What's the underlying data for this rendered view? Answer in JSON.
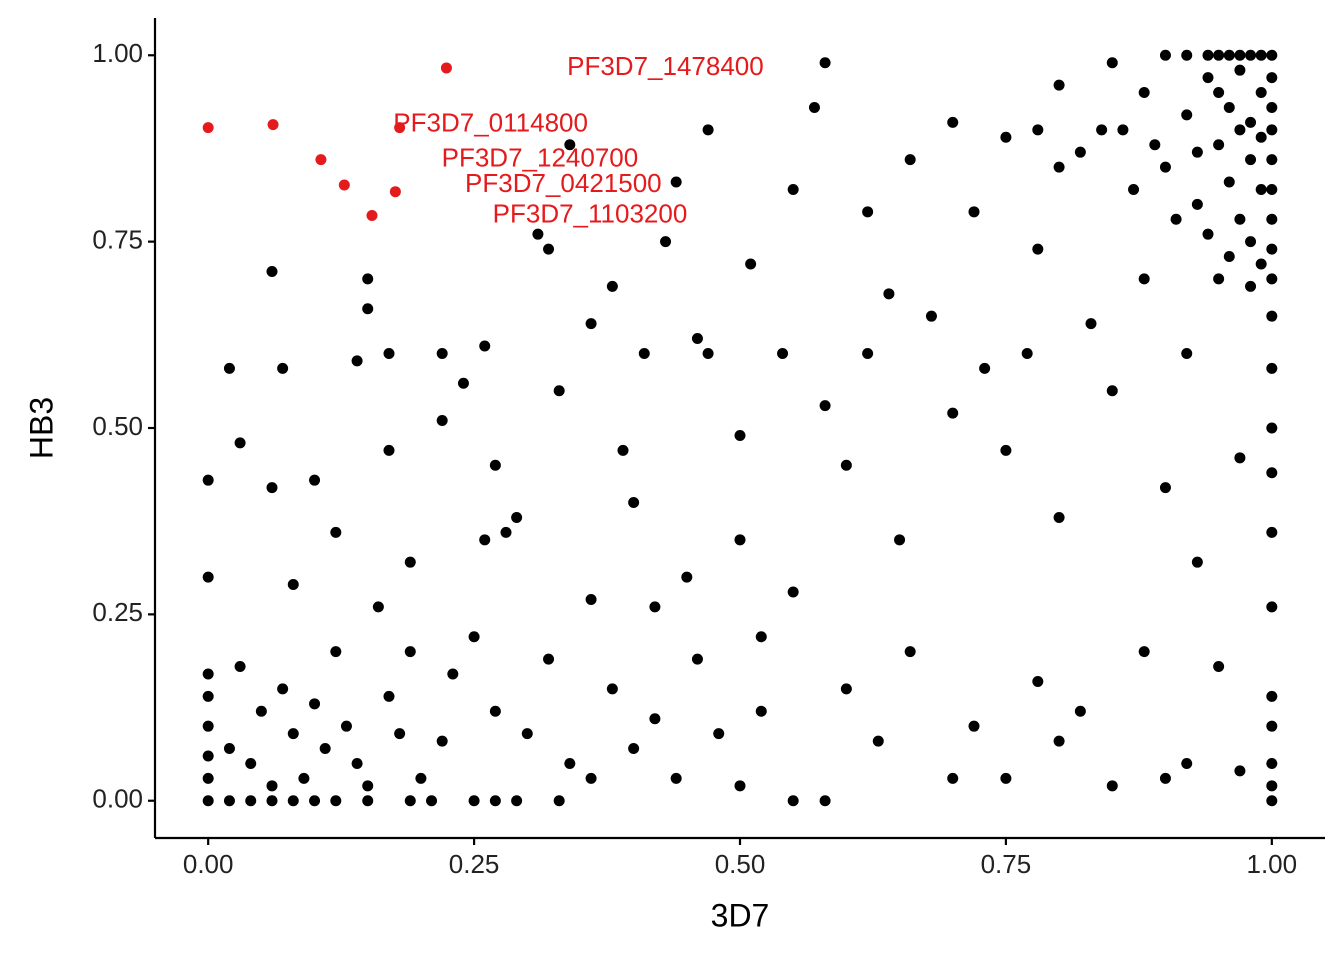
{
  "chart_data": {
    "type": "scatter",
    "x_label": "3D7",
    "y_label": "HB3",
    "xlim": [
      -0.05,
      1.05
    ],
    "ylim": [
      -0.05,
      1.05
    ],
    "xticks": [
      {
        "value": 0,
        "label": "0.00"
      },
      {
        "value": 0.25,
        "label": "0.25"
      },
      {
        "value": 0.5,
        "label": "0.50"
      },
      {
        "value": 0.75,
        "label": "0.75"
      },
      {
        "value": 1,
        "label": "1.00"
      }
    ],
    "yticks": [
      {
        "value": 0,
        "label": "0.00"
      },
      {
        "value": 0.25,
        "label": "0.25"
      },
      {
        "value": 0.5,
        "label": "0.50"
      },
      {
        "value": 0.75,
        "label": "0.75"
      },
      {
        "value": 1,
        "label": "1.00"
      }
    ],
    "grid": false,
    "series": [
      {
        "color": "#000000",
        "x": [
          0,
          0.02,
          0.04,
          0.06,
          0.08,
          0.1,
          0.12,
          0.15,
          0.19,
          0.21,
          0.25,
          0.27,
          0.29,
          0.33,
          0,
          0,
          0,
          0,
          0,
          0,
          0,
          0.02,
          0.03,
          0.04,
          0.05,
          0.06,
          0.07,
          0.08,
          0.09,
          0.1,
          0.11,
          0.12,
          0.13,
          0.14,
          0.15,
          0.16,
          0.17,
          0.18,
          0.19,
          0.2,
          0.22,
          0.23,
          0.25,
          0.27,
          0.3,
          0.32,
          0.34,
          0.36,
          0.38,
          0.4,
          0.42,
          0.44,
          0.46,
          0.48,
          0.5,
          0.52,
          0.55,
          0.58,
          0.6,
          0.63,
          0.66,
          0.7,
          0.72,
          0.75,
          0.78,
          0.8,
          0.82,
          0.85,
          0.88,
          0.9,
          0.92,
          0.95,
          0.97,
          1,
          1,
          1,
          1,
          1,
          1,
          1,
          1,
          1,
          1,
          1,
          0.02,
          0.03,
          0.06,
          0.06,
          0.07,
          0.1,
          0.14,
          0.15,
          0.15,
          0.17,
          0.17,
          0.22,
          0.22,
          0.26,
          0.24,
          0.27,
          0.29,
          0.31,
          0.32,
          0.34,
          0.36,
          0.38,
          0.39,
          0.41,
          0.43,
          0.44,
          0.47,
          0.47,
          0.5,
          0.51,
          0.55,
          0.57,
          0.58,
          0.62,
          0.64,
          0.66,
          0.7,
          0.72,
          0.75,
          0.78,
          0.8,
          0.82,
          0.85,
          0.4,
          0.45,
          0.5,
          0.55,
          0.6,
          0.65,
          0.7,
          0.75,
          0.8,
          0.85,
          0.9,
          0.93,
          0.97,
          0.28,
          0.26,
          0.19,
          0.12,
          0.08,
          0.36,
          0.42,
          0.52,
          0.58,
          0.62,
          0.68,
          0.73,
          0.77,
          0.83,
          0.88,
          0.92,
          0.95,
          0.98,
          0.33,
          0.46,
          0.54,
          0.86,
          0.88,
          0.9,
          0.9,
          0.92,
          0.93,
          0.94,
          0.95,
          0.95,
          0.96,
          0.96,
          0.97,
          0.97,
          0.98,
          0.98,
          0.99,
          0.99,
          1,
          1,
          1,
          1,
          1,
          1,
          1,
          1,
          0.99,
          0.98,
          0.97,
          0.96,
          0.94,
          0.92,
          0.99,
          0.97,
          0.95,
          0.93,
          0.91,
          0.89,
          0.87,
          0.84,
          0.8,
          0.78,
          0.98,
          0.96,
          0.94,
          1,
          0.99
        ],
        "y": [
          0,
          0,
          0,
          0,
          0,
          0,
          0,
          0,
          0,
          0,
          0,
          0,
          0,
          0,
          0.03,
          0.06,
          0.1,
          0.14,
          0.17,
          0.3,
          0.43,
          0.07,
          0.18,
          0.05,
          0.12,
          0.02,
          0.15,
          0.09,
          0.03,
          0.13,
          0.07,
          0.2,
          0.1,
          0.05,
          0.02,
          0.26,
          0.14,
          0.09,
          0.2,
          0.03,
          0.08,
          0.17,
          0.22,
          0.12,
          0.09,
          0.19,
          0.05,
          0.03,
          0.15,
          0.07,
          0.11,
          0.03,
          0.19,
          0.09,
          0.02,
          0.12,
          0,
          0,
          0.15,
          0.08,
          0.2,
          0.03,
          0.1,
          0.03,
          0.16,
          0.08,
          0.12,
          0.02,
          0.2,
          0.03,
          0.05,
          0.18,
          0.04,
          0,
          0.02,
          0.05,
          0.1,
          0.14,
          0.26,
          0.36,
          0.44,
          0.5,
          0.58,
          0.65,
          0.58,
          0.48,
          0.42,
          0.71,
          0.58,
          0.43,
          0.59,
          0.7,
          0.66,
          0.6,
          0.47,
          0.6,
          0.51,
          0.61,
          0.56,
          0.45,
          0.38,
          0.76,
          0.74,
          0.88,
          0.64,
          0.69,
          0.47,
          0.6,
          0.75,
          0.83,
          0.9,
          0.6,
          0.49,
          0.72,
          0.82,
          0.93,
          0.99,
          0.79,
          0.68,
          0.86,
          0.91,
          0.79,
          0.89,
          0.74,
          0.96,
          0.87,
          0.99,
          0.4,
          0.3,
          0.35,
          0.28,
          0.45,
          0.35,
          0.52,
          0.47,
          0.38,
          0.55,
          0.42,
          0.32,
          0.46,
          0.36,
          0.35,
          0.32,
          0.36,
          0.29,
          0.27,
          0.26,
          0.22,
          0.53,
          0.6,
          0.65,
          0.58,
          0.6,
          0.64,
          0.7,
          0.6,
          0.7,
          0.75,
          0.55,
          0.62,
          0.6,
          0.9,
          0.95,
          0.85,
          1,
          0.92,
          0.8,
          0.97,
          0.88,
          1,
          0.83,
          0.93,
          0.78,
          0.98,
          0.86,
          0.91,
          0.95,
          0.82,
          1,
          0.97,
          0.93,
          0.9,
          0.86,
          0.82,
          0.78,
          0.74,
          1,
          1,
          1,
          1,
          1,
          1,
          0.89,
          0.9,
          0.95,
          0.87,
          0.78,
          0.88,
          0.82,
          0.9,
          0.85,
          0.9,
          0.69,
          0.73,
          0.76,
          0.7,
          0.72
        ]
      },
      {
        "color": "#e41a1c",
        "x": [
          0,
          0.061,
          0.106,
          0.128,
          0.154,
          0.176,
          0.18,
          0.224
        ],
        "y": [
          0.903,
          0.907,
          0.86,
          0.826,
          0.785,
          0.817,
          0.903,
          0.983
        ]
      }
    ],
    "annotations": [
      {
        "text": "PF3D7_1478400",
        "x": 0.224,
        "y": 0.983
      },
      {
        "text": "PF3D7_0114800",
        "x": 0.18,
        "y": 0.903
      },
      {
        "text": "PF3D7_1240700",
        "x": 0.106,
        "y": 0.86
      },
      {
        "text": "PF3D7_0421500",
        "x": 0.128,
        "y": 0.826
      },
      {
        "text": "PF3D7_1103200",
        "x": 0.154,
        "y": 0.785
      }
    ],
    "annotation_color": "#e41a1c"
  }
}
